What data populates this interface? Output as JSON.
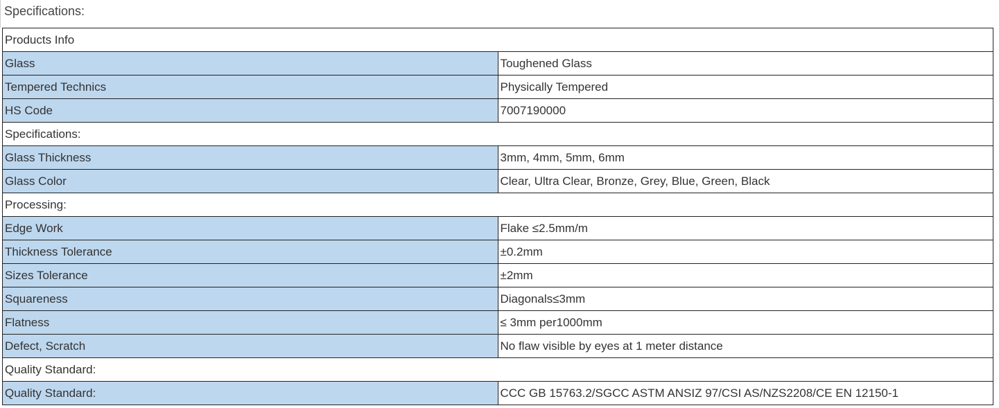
{
  "title": "Specifications:",
  "colors": {
    "key_cell_bg": "#bdd7ee",
    "border": "#222222"
  },
  "rows": [
    {
      "section": "Products Info"
    },
    {
      "key": "Glass",
      "value": "Toughened Glass"
    },
    {
      "key": "Tempered Technics",
      "value": "Physically Tempered"
    },
    {
      "key": "HS Code",
      "value": "7007190000"
    },
    {
      "section": "Specifications:"
    },
    {
      "key": "Glass Thickness",
      "value": "3mm, 4mm, 5mm, 6mm"
    },
    {
      "key": "Glass Color",
      "value": "Clear, Ultra Clear, Bronze, Grey, Blue, Green, Black"
    },
    {
      "section": "Processing:"
    },
    {
      "key": "Edge Work",
      "value": "Flake  ≤2.5mm/m"
    },
    {
      "key": "Thickness Tolerance",
      "value": "±0.2mm"
    },
    {
      "key": "Sizes Tolerance",
      "value": "±2mm"
    },
    {
      "key": "Squareness",
      "value": "Diagonals≤3mm"
    },
    {
      "key": "Flatness",
      "value": "≤ 3mm per1000mm"
    },
    {
      "key": "Defect, Scratch",
      "value": "No flaw visible by eyes at 1 meter distance"
    },
    {
      "section": "Quality Standard:"
    },
    {
      "key": "Quality Standard:",
      "value": "CCC GB 15763.2/SGCC ASTM ANSIZ 97/CSI AS/NZS2208/CE EN 12150-1"
    }
  ]
}
